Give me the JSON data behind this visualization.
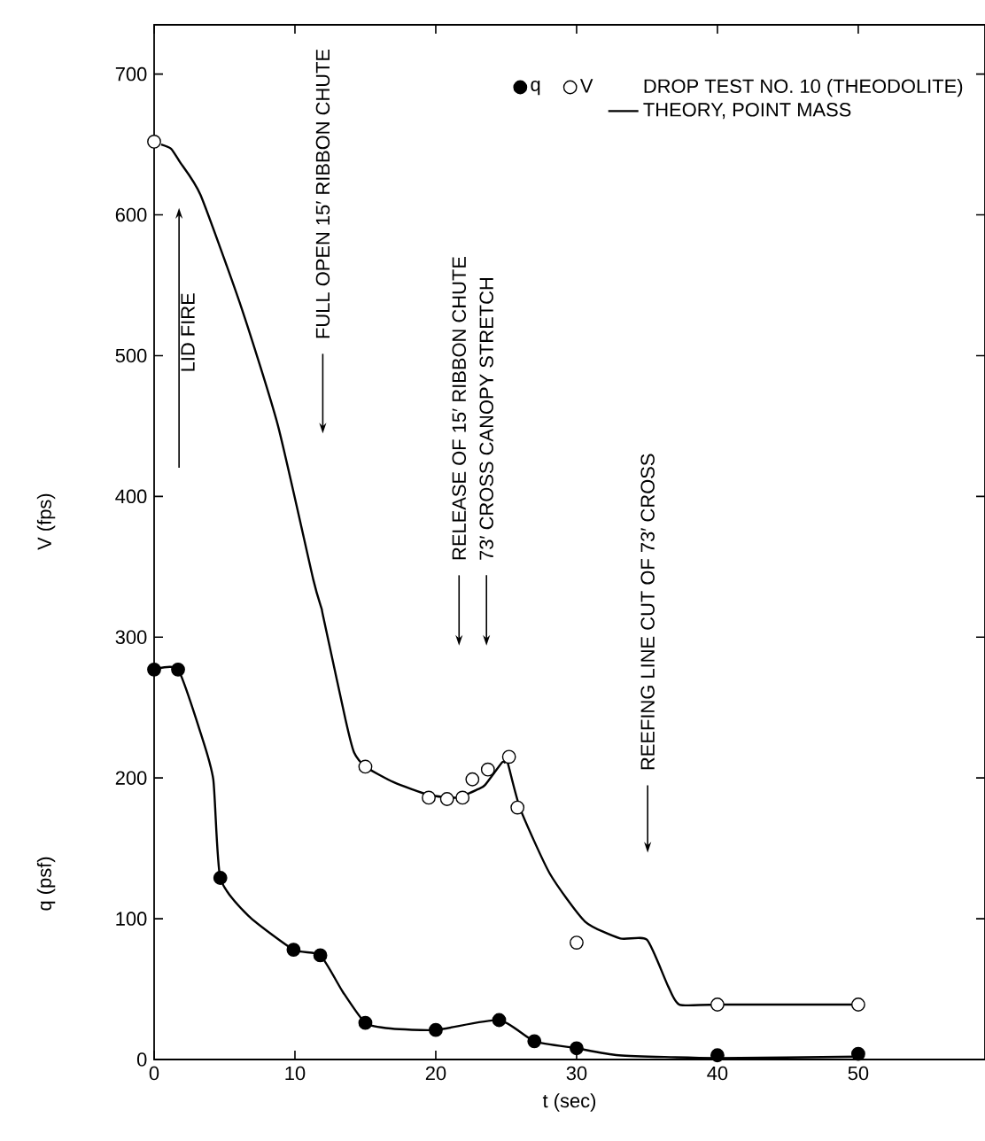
{
  "chart_data": {
    "type": "scatter",
    "xlabel": "t (sec)",
    "ylabel": "V (fps)",
    "xlim": [
      0,
      59
    ],
    "ylim": [
      0,
      735
    ],
    "xticks": [
      0,
      10,
      20,
      30,
      40,
      50
    ],
    "yticks": [
      0,
      100,
      200,
      300,
      400,
      500,
      600,
      700
    ],
    "legend": "top right",
    "marker": "circle",
    "series": [
      {
        "name": "q",
        "color": "#000000",
        "x": [
          0,
          1.7,
          4.7,
          9.9,
          11.8,
          15,
          20,
          24.5,
          27,
          30,
          40,
          50
        ],
        "values": [
          277,
          277,
          129,
          78,
          74,
          26,
          21,
          28,
          13,
          8,
          3,
          4
        ]
      },
      {
        "name": "V",
        "color": "#ffffff",
        "x": [
          0,
          15,
          19.5,
          20.8,
          21.9,
          22.6,
          23.7,
          25.2,
          25.8,
          30,
          40,
          50
        ],
        "values": [
          652,
          208,
          186,
          185,
          186,
          199,
          206,
          215,
          179,
          83,
          39,
          39
        ]
      },
      {
        "name": "THEORY, POINT MASS",
        "type": "line",
        "marker": "none",
        "color": "#000000",
        "x": [
          0.5,
          1.2,
          1.8,
          3.3,
          6.2,
          8.8,
          11.3,
          11.9,
          12,
          13.6,
          14.2,
          15,
          17,
          19.5,
          21.5,
          23,
          23.5,
          24.7,
          24.9,
          25.1,
          26,
          28.1,
          30.6,
          33.1,
          35,
          36.5,
          37.3,
          40,
          50
        ],
        "values": [
          650,
          647,
          638,
          614,
          534,
          450,
          341,
          320,
          315,
          241,
          218,
          208,
          197,
          188,
          186,
          192,
          195,
          211,
          211,
          211,
          178,
          132,
          98,
          86,
          85,
          52,
          39,
          39,
          39
        ]
      },
      {
        "type": "line",
        "marker": "none",
        "color": "#000000",
        "x": [
          0,
          1.7,
          3.3,
          4.2,
          4.7,
          6.7,
          9.9,
          11.8,
          13.4,
          15,
          16.8,
          20,
          24.5,
          27,
          30,
          33,
          40,
          50
        ],
        "values": [
          277,
          277,
          232,
          199,
          129,
          102,
          78,
          74,
          48,
          26,
          22,
          21,
          28,
          13,
          8,
          3,
          1,
          2
        ]
      }
    ],
    "annotations": [
      "q (psf)",
      "DROP TEST NO. 10 (THEODOLITE)",
      "LID FIRE",
      "FULL OPEN 15′ RIBBON CHUTE",
      "RELEASE OF 15′ RIBBON CHUTE",
      "73′ CROSS CANOPY STRETCH",
      "REEFING LINE CUT OF 73′ CROSS"
    ]
  }
}
